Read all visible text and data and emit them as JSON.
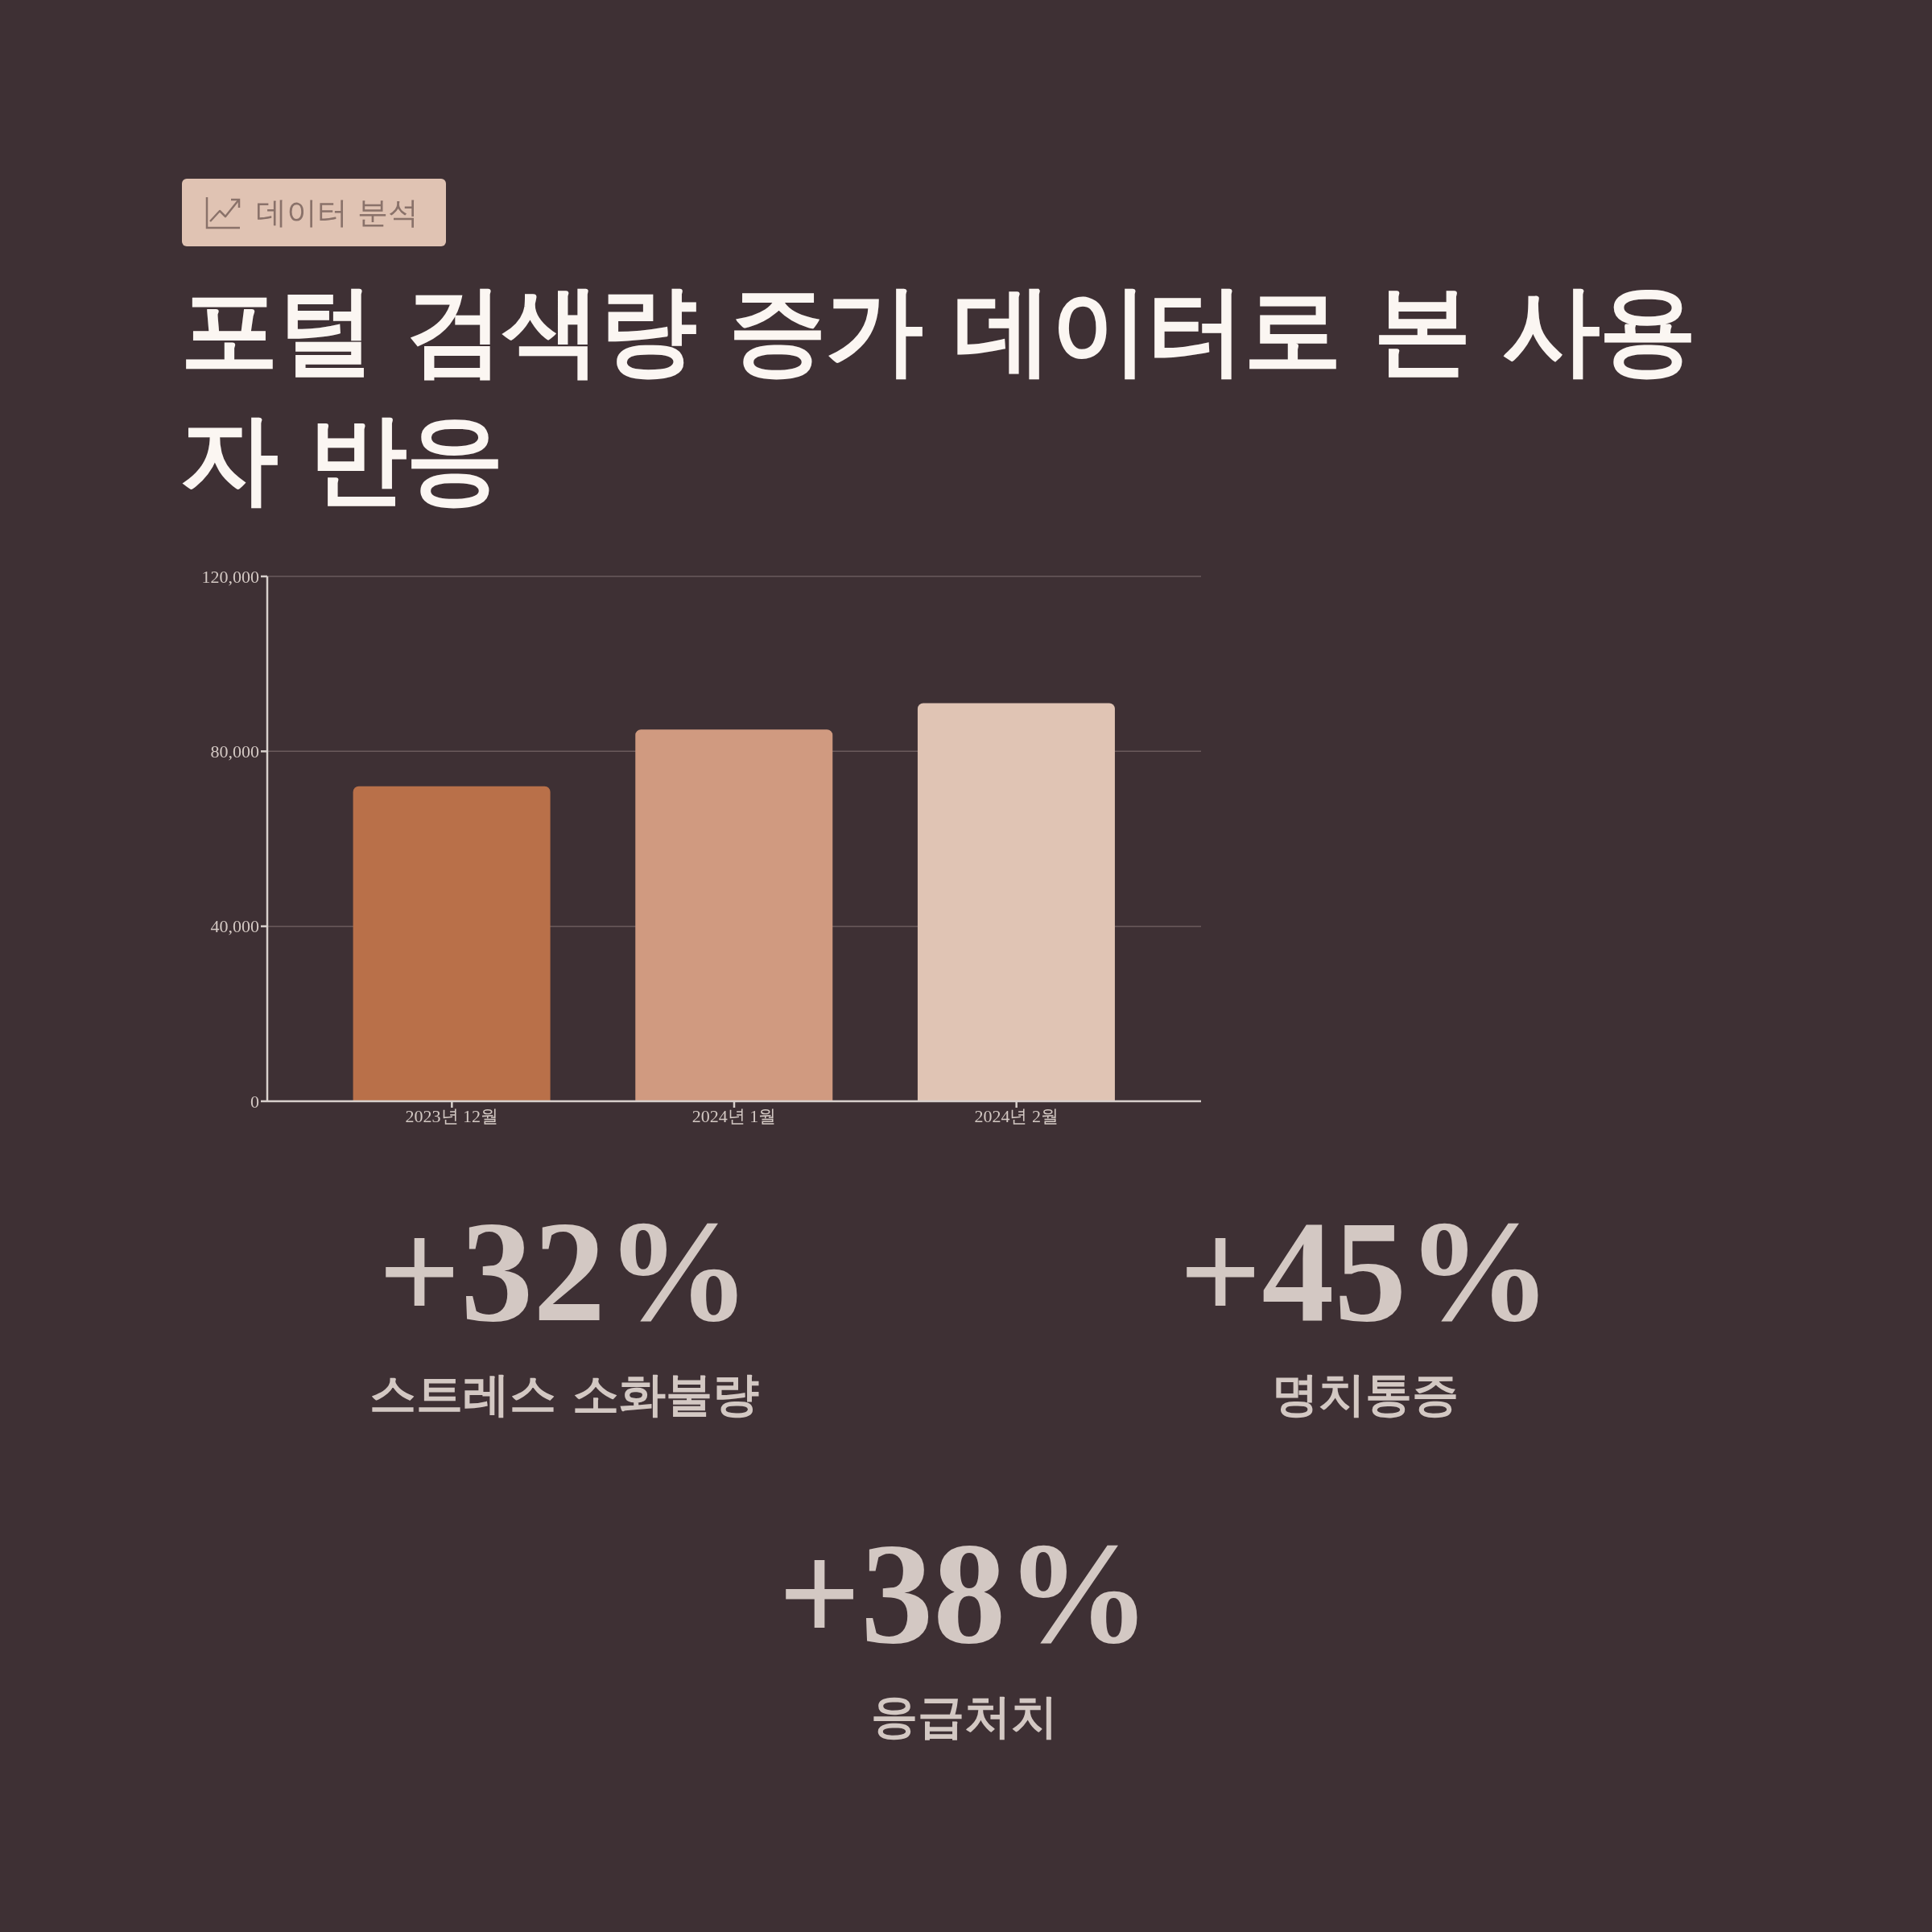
{
  "chart_data": {
    "type": "bar",
    "subtitle": "데이터 분석",
    "title": "포털 검색량 증가 데이터로 본 사용자 반응",
    "categories": [
      "2023년 12월",
      "2024년 1월",
      "2024년 2월"
    ],
    "values": [
      72000,
      85000,
      91000
    ],
    "colors": [
      "#b97049",
      "#d09a80",
      "#e0c4b4"
    ],
    "ylim": [
      0,
      120000
    ],
    "yticks": [
      0,
      {
        "value": 40000,
        "label": "40,000"
      },
      {
        "value": 80000,
        "label": "80,000"
      },
      {
        "value": 120000,
        "label": "120,000"
      }
    ],
    "grid": "y",
    "annotations": [
      "+32%",
      "스트레스 소화불량",
      "+45%",
      "명치통증",
      "+38%",
      "응급처치"
    ]
  }
}
